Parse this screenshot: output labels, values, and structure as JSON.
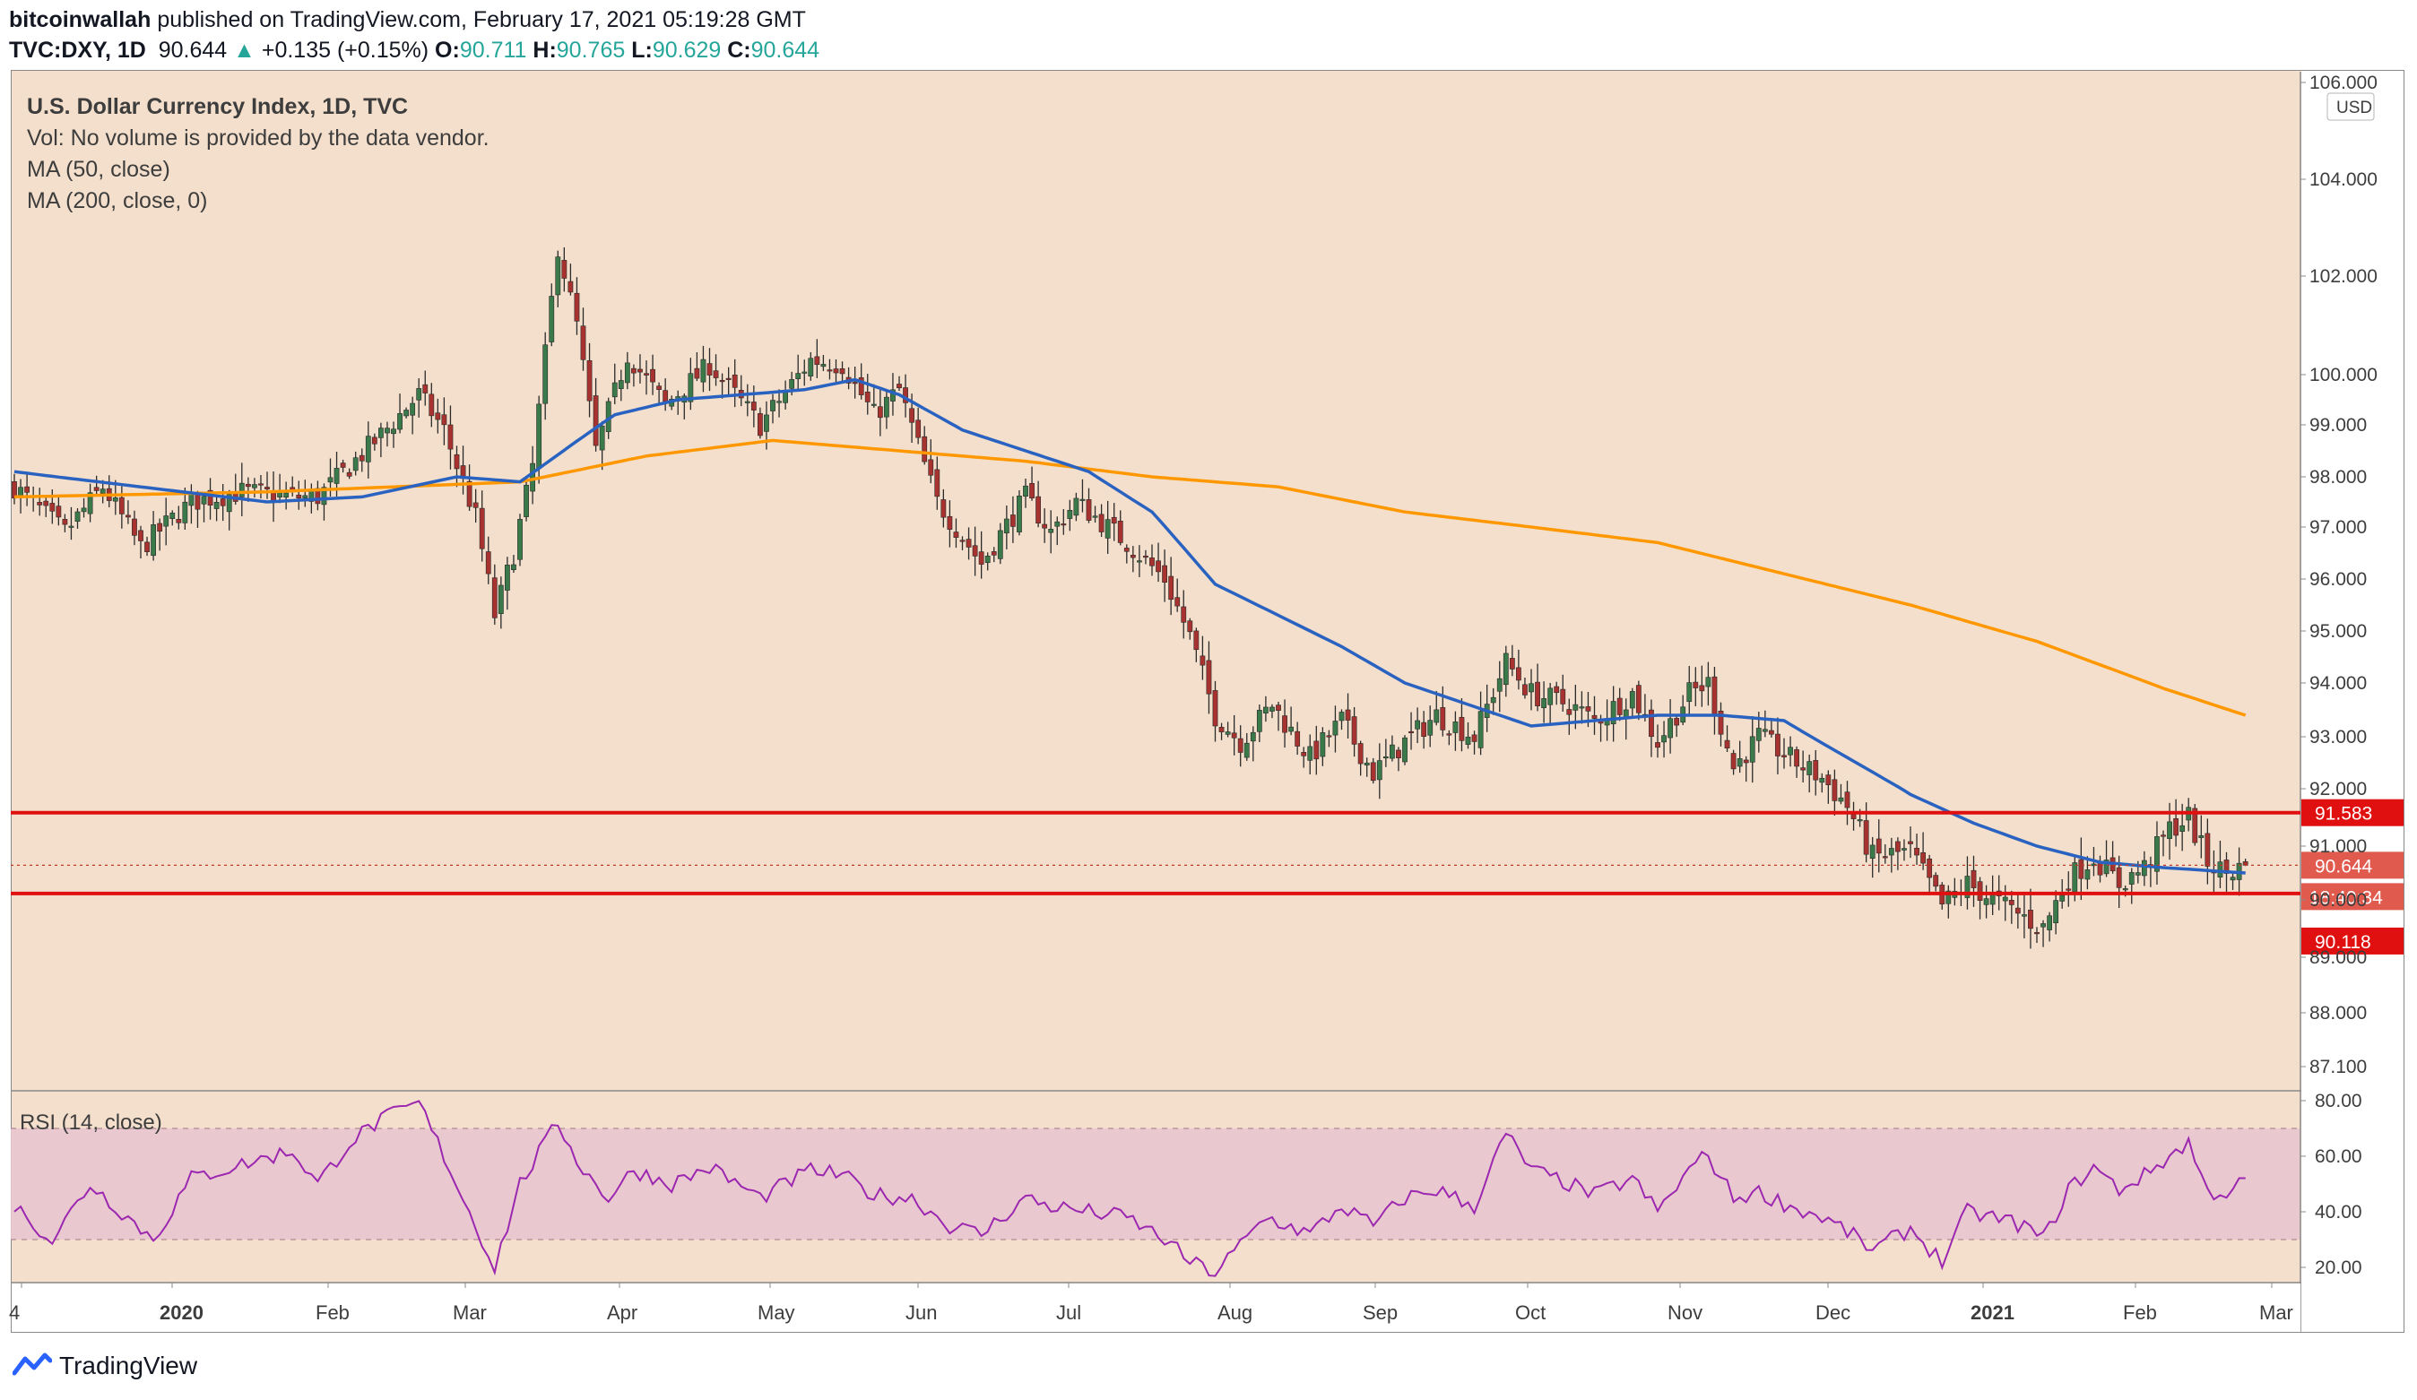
{
  "header": {
    "author": "bitcoinwallah",
    "published_text": "published on TradingView.com, February 17, 2021 05:19:28 GMT",
    "symbol": "TVC:DXY, 1D",
    "last": "90.644",
    "change": "+0.135 (+0.15%)",
    "o_label": "O:",
    "o": "90.711",
    "h_label": "H:",
    "h": "90.765",
    "l_label": "L:",
    "l": "90.629",
    "c_label": "C:",
    "c": "90.644"
  },
  "legend": {
    "title": "U.S. Dollar Currency Index, 1D, TVC",
    "vol": "Vol: No volume is provided by the data vendor.",
    "ma50": "MA (50, close)",
    "ma200": "MA (200, close, 0)",
    "rsi": "RSI (14, close)"
  },
  "footer": {
    "brand": "TradingView"
  },
  "colors": {
    "background": "#f3dfcb",
    "up": "#3a7a4a",
    "down": "#a8322f",
    "ma50": "#2962c0",
    "ma200": "#ff9800",
    "level": "#e01010",
    "rsi": "#9c27b0",
    "rsi_band": "#e8c7cf"
  },
  "chart_data": {
    "type": "candlestick",
    "title": "U.S. Dollar Currency Index, 1D, TVC",
    "currency": "USD",
    "price_axis_ticks": [
      "106.000",
      "104.000",
      "102.000",
      "100.000",
      "99.000",
      "98.000",
      "97.000",
      "96.000",
      "95.000",
      "94.000",
      "93.000",
      "92.000",
      "91.000",
      "90.000",
      "89.000",
      "88.000",
      "87.100"
    ],
    "time_axis_labels": [
      "4",
      "2020",
      "Feb",
      "Mar",
      "Apr",
      "May",
      "Jun",
      "Jul",
      "Aug",
      "Sep",
      "Oct",
      "Nov",
      "Dec",
      "2021",
      "Feb",
      "Mar"
    ],
    "horizontal_levels": [
      {
        "label": "91.583",
        "value": 91.583
      },
      {
        "label": "90.118",
        "value": 90.118
      }
    ],
    "last_price_label": "90.644",
    "countdown_label": "18:40:34",
    "close_anchors": [
      {
        "t": 0,
        "v": 97.8
      },
      {
        "t": 8,
        "v": 96.9
      },
      {
        "t": 14,
        "v": 97.8
      },
      {
        "t": 20,
        "v": 96.6
      },
      {
        "t": 28,
        "v": 97.5
      },
      {
        "t": 36,
        "v": 97.7
      },
      {
        "t": 44,
        "v": 97.6
      },
      {
        "t": 48,
        "v": 97.6
      },
      {
        "t": 53,
        "v": 98.2
      },
      {
        "t": 58,
        "v": 98.8
      },
      {
        "t": 64,
        "v": 99.6
      },
      {
        "t": 68,
        "v": 98.9
      },
      {
        "t": 73,
        "v": 97.2
      },
      {
        "t": 76,
        "v": 95.3
      },
      {
        "t": 79,
        "v": 96.5
      },
      {
        "t": 82,
        "v": 98.2
      },
      {
        "t": 86,
        "v": 102.6
      },
      {
        "t": 89,
        "v": 101.0
      },
      {
        "t": 92,
        "v": 98.5
      },
      {
        "t": 97,
        "v": 100.4
      },
      {
        "t": 103,
        "v": 99.4
      },
      {
        "t": 110,
        "v": 100.2
      },
      {
        "t": 118,
        "v": 99.0
      },
      {
        "t": 126,
        "v": 100.3
      },
      {
        "t": 131,
        "v": 100.2
      },
      {
        "t": 136,
        "v": 99.2
      },
      {
        "t": 140,
        "v": 99.7
      },
      {
        "t": 146,
        "v": 97.5
      },
      {
        "t": 153,
        "v": 96.3
      },
      {
        "t": 160,
        "v": 97.6
      },
      {
        "t": 164,
        "v": 96.9
      },
      {
        "t": 168,
        "v": 97.5
      },
      {
        "t": 176,
        "v": 96.7
      },
      {
        "t": 182,
        "v": 96.0
      },
      {
        "t": 186,
        "v": 94.9
      },
      {
        "t": 190,
        "v": 93.4
      },
      {
        "t": 194,
        "v": 92.9
      },
      {
        "t": 199,
        "v": 93.6
      },
      {
        "t": 205,
        "v": 92.6
      },
      {
        "t": 210,
        "v": 93.3
      },
      {
        "t": 215,
        "v": 92.3
      },
      {
        "t": 220,
        "v": 92.9
      },
      {
        "t": 225,
        "v": 93.4
      },
      {
        "t": 231,
        "v": 93.0
      },
      {
        "t": 236,
        "v": 94.4
      },
      {
        "t": 240,
        "v": 93.8
      },
      {
        "t": 246,
        "v": 93.6
      },
      {
        "t": 250,
        "v": 93.3
      },
      {
        "t": 256,
        "v": 93.8
      },
      {
        "t": 260,
        "v": 92.9
      },
      {
        "t": 265,
        "v": 93.8
      },
      {
        "t": 268,
        "v": 94.0
      },
      {
        "t": 272,
        "v": 92.4
      },
      {
        "t": 276,
        "v": 93.0
      },
      {
        "t": 282,
        "v": 92.5
      },
      {
        "t": 286,
        "v": 92.2
      },
      {
        "t": 290,
        "v": 91.7
      },
      {
        "t": 294,
        "v": 90.8
      },
      {
        "t": 300,
        "v": 90.9
      },
      {
        "t": 305,
        "v": 89.9
      },
      {
        "t": 309,
        "v": 90.3
      },
      {
        "t": 313,
        "v": 90.0
      },
      {
        "t": 318,
        "v": 89.7
      },
      {
        "t": 321,
        "v": 89.5
      },
      {
        "t": 325,
        "v": 90.4
      },
      {
        "t": 329,
        "v": 90.8
      },
      {
        "t": 333,
        "v": 90.3
      },
      {
        "t": 337,
        "v": 90.6
      },
      {
        "t": 341,
        "v": 91.3
      },
      {
        "t": 344,
        "v": 91.5
      },
      {
        "t": 347,
        "v": 90.7
      },
      {
        "t": 350,
        "v": 90.5
      },
      {
        "t": 353,
        "v": 90.64
      }
    ],
    "ma50_anchors": [
      {
        "t": 0,
        "v": 98.1
      },
      {
        "t": 20,
        "v": 97.8
      },
      {
        "t": 40,
        "v": 97.5
      },
      {
        "t": 55,
        "v": 97.6
      },
      {
        "t": 70,
        "v": 98.0
      },
      {
        "t": 80,
        "v": 97.9
      },
      {
        "t": 88,
        "v": 98.6
      },
      {
        "t": 95,
        "v": 99.2
      },
      {
        "t": 105,
        "v": 99.5
      },
      {
        "t": 115,
        "v": 99.6
      },
      {
        "t": 125,
        "v": 99.7
      },
      {
        "t": 133,
        "v": 99.9
      },
      {
        "t": 140,
        "v": 99.6
      },
      {
        "t": 150,
        "v": 98.9
      },
      {
        "t": 160,
        "v": 98.5
      },
      {
        "t": 170,
        "v": 98.1
      },
      {
        "t": 180,
        "v": 97.3
      },
      {
        "t": 190,
        "v": 95.9
      },
      {
        "t": 200,
        "v": 95.3
      },
      {
        "t": 210,
        "v": 94.7
      },
      {
        "t": 220,
        "v": 94.0
      },
      {
        "t": 230,
        "v": 93.6
      },
      {
        "t": 240,
        "v": 93.2
      },
      {
        "t": 250,
        "v": 93.3
      },
      {
        "t": 260,
        "v": 93.4
      },
      {
        "t": 270,
        "v": 93.4
      },
      {
        "t": 280,
        "v": 93.3
      },
      {
        "t": 290,
        "v": 92.6
      },
      {
        "t": 300,
        "v": 91.9
      },
      {
        "t": 310,
        "v": 91.4
      },
      {
        "t": 320,
        "v": 91.0
      },
      {
        "t": 330,
        "v": 90.7
      },
      {
        "t": 340,
        "v": 90.6
      },
      {
        "t": 353,
        "v": 90.5
      }
    ],
    "ma200_anchors": [
      {
        "t": 0,
        "v": 97.6
      },
      {
        "t": 40,
        "v": 97.7
      },
      {
        "t": 60,
        "v": 97.8
      },
      {
        "t": 80,
        "v": 97.9
      },
      {
        "t": 100,
        "v": 98.4
      },
      {
        "t": 120,
        "v": 98.7
      },
      {
        "t": 140,
        "v": 98.5
      },
      {
        "t": 160,
        "v": 98.3
      },
      {
        "t": 180,
        "v": 98.0
      },
      {
        "t": 200,
        "v": 97.8
      },
      {
        "t": 220,
        "v": 97.3
      },
      {
        "t": 240,
        "v": 97.0
      },
      {
        "t": 260,
        "v": 96.7
      },
      {
        "t": 280,
        "v": 96.1
      },
      {
        "t": 300,
        "v": 95.5
      },
      {
        "t": 320,
        "v": 94.8
      },
      {
        "t": 340,
        "v": 93.9
      },
      {
        "t": 353,
        "v": 93.4
      }
    ],
    "rsi": {
      "name": "RSI (14, close)",
      "axis_ticks": [
        "80.00",
        "60.00",
        "40.00",
        "20.00"
      ],
      "upper_band": 70,
      "lower_band": 30,
      "anchors": [
        {
          "t": 0,
          "v": 42
        },
        {
          "t": 6,
          "v": 30
        },
        {
          "t": 12,
          "v": 50
        },
        {
          "t": 18,
          "v": 38
        },
        {
          "t": 22,
          "v": 30
        },
        {
          "t": 28,
          "v": 52
        },
        {
          "t": 36,
          "v": 57
        },
        {
          "t": 44,
          "v": 62
        },
        {
          "t": 48,
          "v": 50
        },
        {
          "t": 53,
          "v": 65
        },
        {
          "t": 58,
          "v": 73
        },
        {
          "t": 64,
          "v": 79
        },
        {
          "t": 68,
          "v": 60
        },
        {
          "t": 73,
          "v": 35
        },
        {
          "t": 76,
          "v": 20
        },
        {
          "t": 80,
          "v": 50
        },
        {
          "t": 86,
          "v": 72
        },
        {
          "t": 90,
          "v": 55
        },
        {
          "t": 94,
          "v": 45
        },
        {
          "t": 98,
          "v": 55
        },
        {
          "t": 104,
          "v": 50
        },
        {
          "t": 110,
          "v": 56
        },
        {
          "t": 118,
          "v": 45
        },
        {
          "t": 126,
          "v": 55
        },
        {
          "t": 131,
          "v": 53
        },
        {
          "t": 136,
          "v": 46
        },
        {
          "t": 142,
          "v": 45
        },
        {
          "t": 148,
          "v": 35
        },
        {
          "t": 153,
          "v": 32
        },
        {
          "t": 160,
          "v": 45
        },
        {
          "t": 164,
          "v": 42
        },
        {
          "t": 170,
          "v": 40
        },
        {
          "t": 176,
          "v": 38
        },
        {
          "t": 182,
          "v": 30
        },
        {
          "t": 186,
          "v": 22
        },
        {
          "t": 190,
          "v": 18
        },
        {
          "t": 194,
          "v": 28
        },
        {
          "t": 198,
          "v": 38
        },
        {
          "t": 205,
          "v": 32
        },
        {
          "t": 210,
          "v": 42
        },
        {
          "t": 215,
          "v": 35
        },
        {
          "t": 220,
          "v": 45
        },
        {
          "t": 225,
          "v": 48
        },
        {
          "t": 231,
          "v": 42
        },
        {
          "t": 236,
          "v": 68
        },
        {
          "t": 240,
          "v": 55
        },
        {
          "t": 246,
          "v": 50
        },
        {
          "t": 250,
          "v": 46
        },
        {
          "t": 256,
          "v": 52
        },
        {
          "t": 260,
          "v": 40
        },
        {
          "t": 266,
          "v": 58
        },
        {
          "t": 268,
          "v": 60
        },
        {
          "t": 272,
          "v": 45
        },
        {
          "t": 276,
          "v": 47
        },
        {
          "t": 282,
          "v": 41
        },
        {
          "t": 286,
          "v": 38
        },
        {
          "t": 290,
          "v": 33
        },
        {
          "t": 294,
          "v": 26
        },
        {
          "t": 300,
          "v": 34
        },
        {
          "t": 305,
          "v": 22
        },
        {
          "t": 309,
          "v": 40
        },
        {
          "t": 313,
          "v": 38
        },
        {
          "t": 318,
          "v": 35
        },
        {
          "t": 321,
          "v": 30
        },
        {
          "t": 325,
          "v": 48
        },
        {
          "t": 329,
          "v": 56
        },
        {
          "t": 333,
          "v": 48
        },
        {
          "t": 337,
          "v": 53
        },
        {
          "t": 341,
          "v": 60
        },
        {
          "t": 344,
          "v": 65
        },
        {
          "t": 347,
          "v": 47
        },
        {
          "t": 350,
          "v": 47
        },
        {
          "t": 353,
          "v": 51
        }
      ]
    }
  }
}
